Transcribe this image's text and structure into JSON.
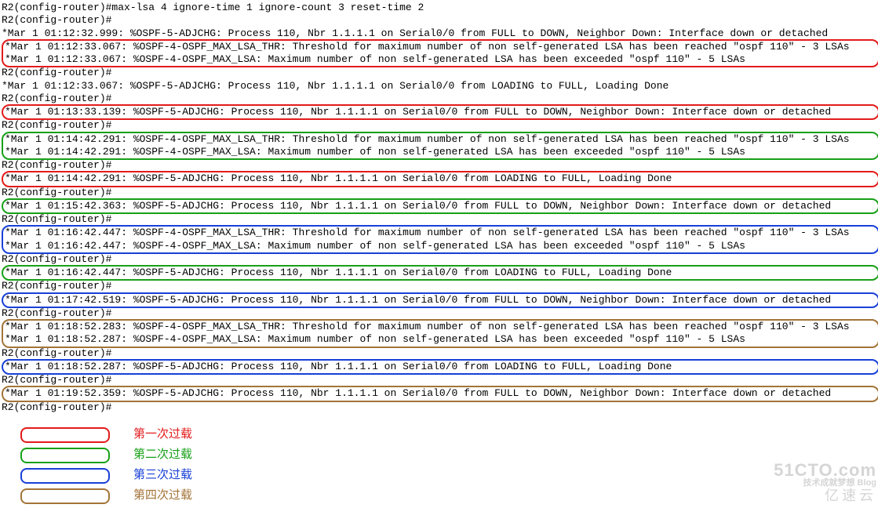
{
  "colors": {
    "red": "#e31b1b",
    "green": "#18a018",
    "blue": "#1840d8",
    "brown": "#a37438"
  },
  "l": {
    "cmd1": "R2(config-router)#max-lsa 4 ignore-time 1 ignore-count 3 reset-time 2",
    "prompt": "R2(config-router)#",
    "down1": "*Mar  1 01:12:32.999: %OSPF-5-ADJCHG: Process 110, Nbr 1.1.1.1 on Serial0/0 from FULL to DOWN, Neighbor Down: Interface down or detached",
    "r1a": "*Mar  1 01:12:33.067: %OSPF-4-OSPF_MAX_LSA_THR: Threshold for maximum number of non self-generated LSA has been reached \"ospf 110\" - 3 LSAs",
    "r1b": "*Mar  1 01:12:33.067: %OSPF-4-OSPF_MAX_LSA: Maximum number of non self-generated LSA has been exceeded \"ospf 110\" - 5 LSAs",
    "full1": "*Mar  1 01:12:33.067: %OSPF-5-ADJCHG: Process 110, Nbr 1.1.1.1 on Serial0/0 from LOADING to FULL, Loading Done",
    "r2": "*Mar  1 01:13:33.139: %OSPF-5-ADJCHG: Process 110, Nbr 1.1.1.1 on Serial0/0 from FULL to DOWN, Neighbor Down: Interface down or detached",
    "g1a": "*Mar  1 01:14:42.291: %OSPF-4-OSPF_MAX_LSA_THR: Threshold for maximum number of non self-generated LSA has been reached \"ospf 110\" - 3 LSAs",
    "g1b": "*Mar  1 01:14:42.291: %OSPF-4-OSPF_MAX_LSA: Maximum number of non self-generated LSA has been exceeded \"ospf 110\" - 5 LSAs",
    "r3": "*Mar  1 01:14:42.291: %OSPF-5-ADJCHG: Process 110, Nbr 1.1.1.1 on Serial0/0 from LOADING to FULL, Loading Done",
    "g2": "*Mar  1 01:15:42.363: %OSPF-5-ADJCHG: Process 110, Nbr 1.1.1.1 on Serial0/0 from FULL to DOWN, Neighbor Down: Interface down or detached",
    "b1a": "*Mar  1 01:16:42.447: %OSPF-4-OSPF_MAX_LSA_THR: Threshold for maximum number of non self-generated LSA has been reached \"ospf 110\" - 3 LSAs",
    "b1b": "*Mar  1 01:16:42.447: %OSPF-4-OSPF_MAX_LSA: Maximum number of non self-generated LSA has been exceeded \"ospf 110\" - 5 LSAs",
    "g3": "*Mar  1 01:16:42.447: %OSPF-5-ADJCHG: Process 110, Nbr 1.1.1.1 on Serial0/0 from LOADING to FULL, Loading Done",
    "b2": "*Mar  1 01:17:42.519: %OSPF-5-ADJCHG: Process 110, Nbr 1.1.1.1 on Serial0/0 from FULL to DOWN, Neighbor Down: Interface down or detached",
    "br1a": "*Mar  1 01:18:52.283: %OSPF-4-OSPF_MAX_LSA_THR: Threshold for maximum number of non self-generated LSA has been reached \"ospf 110\" - 3 LSAs",
    "br1b": "*Mar  1 01:18:52.287: %OSPF-4-OSPF_MAX_LSA: Maximum number of non self-generated LSA has been exceeded \"ospf 110\" - 5 LSAs",
    "b3": "*Mar  1 01:18:52.287: %OSPF-5-ADJCHG: Process 110, Nbr 1.1.1.1 on Serial0/0 from LOADING to FULL, Loading Done",
    "br2": "*Mar  1 01:19:52.359: %OSPF-5-ADJCHG: Process 110, Nbr 1.1.1.1 on Serial0/0 from FULL to DOWN, Neighbor Down: Interface down or detached"
  },
  "legend": {
    "t1": "第一次过载",
    "t2": "第二次过载",
    "t3": "第三次过载",
    "t4": "第四次过载"
  },
  "watermark": {
    "big": "51CTO.com",
    "mid": "技术成就梦想  Blog",
    "zh": "亿速云"
  }
}
